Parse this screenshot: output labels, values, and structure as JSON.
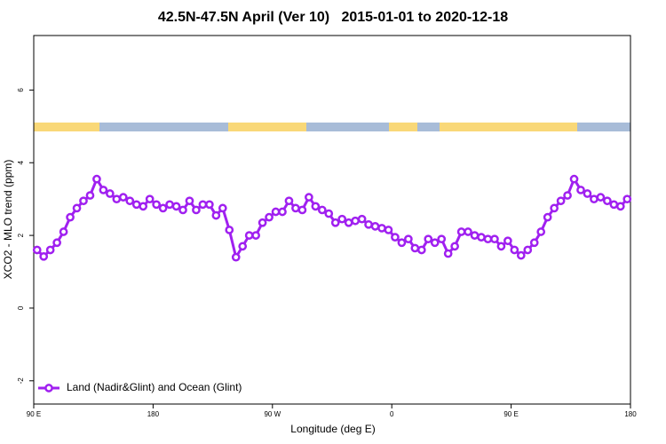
{
  "chart_data": {
    "type": "line",
    "title": "42.5N-47.5N April (Ver 10)   2015-01-01 to 2020-12-18",
    "x_label": "Longitude (deg E)",
    "y_label": "XCO2 - MLO trend (ppm)",
    "xlim": [
      90,
      540
    ],
    "xticks": [
      {
        "value": 90,
        "label": "90 E"
      },
      {
        "value": 180,
        "label": "180"
      },
      {
        "value": 270,
        "label": "90 W"
      },
      {
        "value": 360,
        "label": "0"
      },
      {
        "value": 450,
        "label": "90 E"
      },
      {
        "value": 540,
        "label": "180"
      }
    ],
    "ylim": [
      -2.64,
      7.5
    ],
    "yticks": [
      {
        "value": -2,
        "label": "-2"
      },
      0,
      2,
      4,
      6
    ],
    "legend": "bottomleft",
    "x": [
      92.5,
      97.5,
      102.5,
      107.5,
      112.5,
      117.5,
      122.5,
      127.5,
      132.5,
      137.5,
      142.5,
      147.5,
      152.5,
      157.5,
      162.5,
      167.5,
      172.5,
      177.5,
      182.5,
      187.5,
      192.5,
      197.5,
      202.5,
      207.5,
      212.5,
      217.5,
      222.5,
      227.5,
      232.5,
      237.5,
      242.5,
      247.5,
      252.5,
      257.5,
      262.5,
      267.5,
      272.5,
      277.5,
      282.5,
      287.5,
      292.5,
      297.5,
      302.5,
      307.5,
      312.5,
      317.5,
      322.5,
      327.5,
      332.5,
      337.5,
      342.5,
      347.5,
      352.5,
      357.5,
      362.5,
      367.5,
      372.5,
      377.5,
      382.5,
      387.5,
      392.5,
      397.5,
      402.5,
      407.5,
      412.5,
      417.5,
      422.5,
      427.5,
      432.5,
      437.5,
      442.5,
      447.5,
      452.5,
      457.5,
      462.5,
      467.5,
      472.5,
      477.5,
      482.5,
      487.5,
      492.5,
      497.5,
      502.5,
      507.5,
      512.5,
      517.5,
      522.5,
      527.5,
      532.5,
      537.5
    ],
    "series": [
      {
        "name": "Land (Nadir&Glint) and Ocean (Glint)",
        "color": "#a020f0",
        "values": [
          1.6,
          1.42,
          1.6,
          1.8,
          2.1,
          2.5,
          2.75,
          2.95,
          3.1,
          3.55,
          3.25,
          3.15,
          3.0,
          3.05,
          2.95,
          2.85,
          2.8,
          3.0,
          2.85,
          2.75,
          2.85,
          2.8,
          2.7,
          2.95,
          2.7,
          2.85,
          2.85,
          2.55,
          2.75,
          2.15,
          1.4,
          1.7,
          2.0,
          2.0,
          2.35,
          2.5,
          2.65,
          2.65,
          2.95,
          2.75,
          2.7,
          3.05,
          2.8,
          2.7,
          2.6,
          2.35,
          2.45,
          2.35,
          2.4,
          2.45,
          2.3,
          2.25,
          2.2,
          2.15,
          1.95,
          1.8,
          1.9,
          1.65,
          1.6,
          1.9,
          1.8,
          1.9,
          1.5,
          1.7,
          2.1,
          2.1,
          2.0,
          1.95,
          1.9,
          1.9,
          1.7,
          1.85,
          1.6,
          1.45,
          1.6,
          1.8,
          2.1,
          2.5,
          2.75,
          2.95,
          3.1,
          3.55,
          3.25,
          3.15,
          3.0,
          3.05,
          2.95,
          2.85,
          2.8,
          3.0
        ]
      }
    ]
  }
}
